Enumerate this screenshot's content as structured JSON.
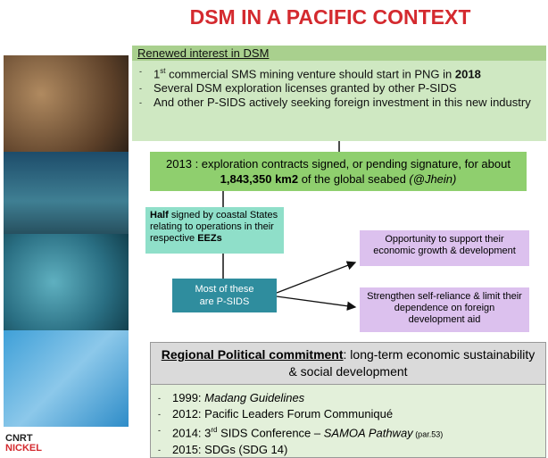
{
  "title": "DSM IN A PACIFIC CONTEXT",
  "renewed": {
    "heading": "Renewed interest in DSM",
    "bullets": [
      [
        "1",
        "st",
        " commercial SMS mining venture should start in PNG in ",
        "2018"
      ],
      [
        "Several DSM exploration licenses granted by other P-SIDS"
      ],
      [
        "And other P-SIDS actively seeking foreign investment in this new industry"
      ]
    ]
  },
  "contracts": {
    "text": "2013 : exploration contracts signed, or pending signature, for about",
    "area": "1,843,350 km2",
    "rest": " of the global seabed ",
    "source": "(@Jhein)"
  },
  "half": [
    "Half",
    " signed by coastal States relating to operations in their respective ",
    "EEZs"
  ],
  "psids": "Most of these are P-SIDS",
  "outcomes": [
    "Opportunity to support their economic growth & development",
    "Strengthen self-reliance & limit their dependence on foreign development aid"
  ],
  "commitment": {
    "heading": "Regional Political commitment",
    "subheading": ": long-term economic sustainability & social development",
    "items": [
      [
        "1999: ",
        "Madang Guidelines"
      ],
      [
        "2012: Pacific Leaders Forum Communiqué"
      ],
      [
        "2014: 3",
        "rd",
        " SIDS Conference – ",
        "SAMOA Pathway",
        " (par.53)"
      ],
      [
        "2015: SDGs (SDG 14)"
      ]
    ]
  },
  "logo": {
    "line1": "CNRT",
    "line2": "NICKEL"
  }
}
